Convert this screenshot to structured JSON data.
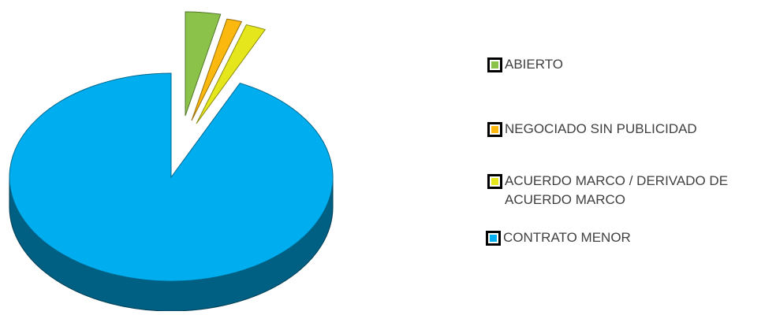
{
  "chart_data": {
    "type": "pie",
    "style": "3d-exploded",
    "categories": [
      "ABIERTO",
      "NEGOCIADO SIN PUBLICIDAD",
      "ACUERDO MARCO / DERIVADO DE ACUERDO MARCO",
      "CONTRATO MENOR"
    ],
    "values": [
      3.5,
      1.5,
      2.0,
      93.0
    ],
    "colors": [
      "#8bc34a",
      "#fbb80f",
      "#e6e61c",
      "#00aeef"
    ],
    "legend_position": "right"
  },
  "legend": {
    "items": [
      {
        "label": "ABIERTO",
        "color": "#8bc34a"
      },
      {
        "label": "NEGOCIADO SIN PUBLICIDAD",
        "color": "#fbb80f"
      },
      {
        "label": "ACUERDO MARCO / DERIVADO DE ACUERDO MARCO",
        "color": "#e6e61c"
      },
      {
        "label": "CONTRATO MENOR",
        "color": "#00aeef"
      }
    ]
  }
}
